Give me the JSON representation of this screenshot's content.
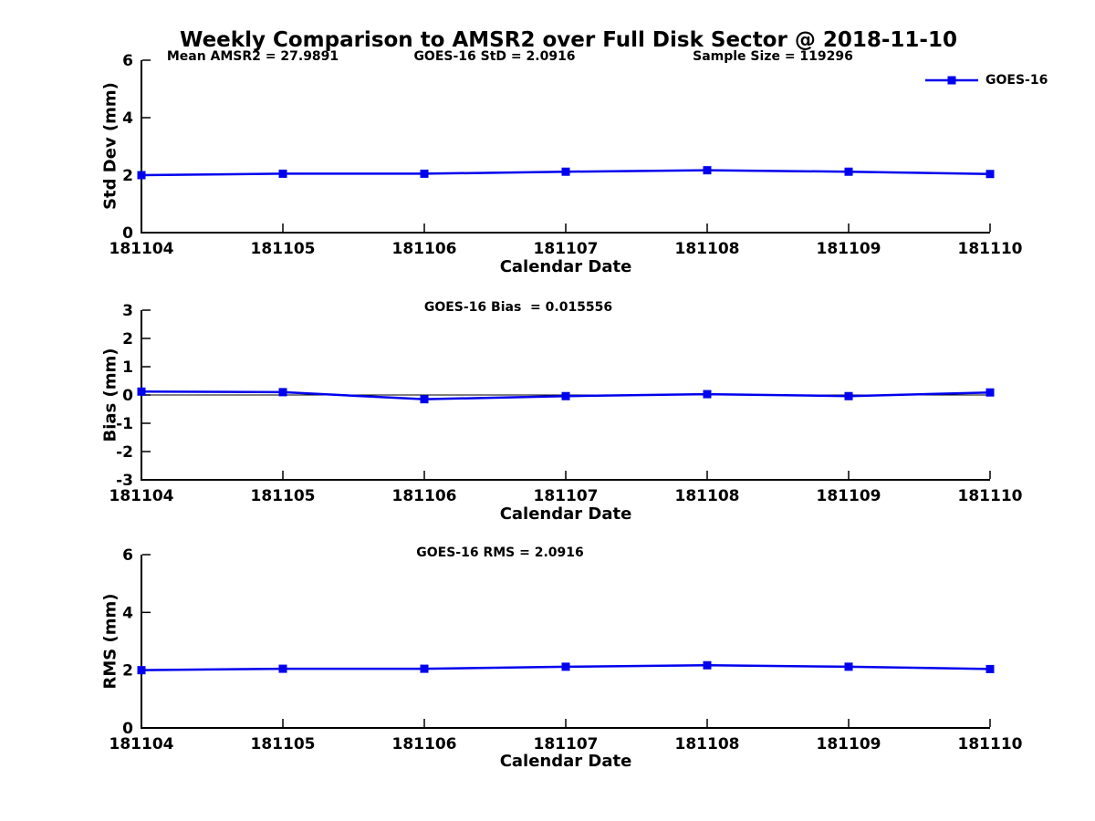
{
  "title": "Weekly Comparison to AMSR2 over Full Disk Sector @ 2018-11-10",
  "legend": {
    "label": "GOES-16",
    "color": "#0000EE",
    "marker": "filled-square",
    "position": "top-right"
  },
  "chart_data": [
    {
      "type": "line",
      "ylabel": "Std Dev (mm)",
      "xlabel": "Calendar Date",
      "ylim": [
        0,
        6
      ],
      "yticks": [
        0,
        2,
        4,
        6
      ],
      "grid": false,
      "x": [
        "181104",
        "181105",
        "181106",
        "181107",
        "181108",
        "181109",
        "181110"
      ],
      "series": [
        {
          "name": "GOES-16",
          "color": "#0000EE",
          "marker": "square",
          "values": [
            2.0,
            2.05,
            2.05,
            2.12,
            2.17,
            2.12,
            2.04
          ]
        }
      ],
      "annotations": [
        {
          "text": "Mean AMSR2 = 27.9891"
        },
        {
          "text": "GOES-16 StD = 2.0916"
        },
        {
          "text": "Sample Size = 119296"
        }
      ]
    },
    {
      "type": "line",
      "ylabel": "Bias (mm)",
      "xlabel": "Calendar Date",
      "ylim": [
        -3,
        3
      ],
      "yticks": [
        -3,
        -2,
        -1,
        0,
        1,
        2,
        3
      ],
      "zero_line": true,
      "grid": false,
      "x": [
        "181104",
        "181105",
        "181106",
        "181107",
        "181108",
        "181109",
        "181110"
      ],
      "series": [
        {
          "name": "GOES-16",
          "color": "#0000EE",
          "marker": "square",
          "values": [
            0.12,
            0.1,
            -0.15,
            -0.04,
            0.03,
            -0.04,
            0.09
          ]
        }
      ],
      "annotations": [
        {
          "text": "GOES-16 Bias  = 0.015556"
        }
      ]
    },
    {
      "type": "line",
      "ylabel": "RMS (mm)",
      "xlabel": "Calendar Date",
      "ylim": [
        0,
        6
      ],
      "yticks": [
        0,
        2,
        4,
        6
      ],
      "grid": false,
      "x": [
        "181104",
        "181105",
        "181106",
        "181107",
        "181108",
        "181109",
        "181110"
      ],
      "series": [
        {
          "name": "GOES-16",
          "color": "#0000EE",
          "marker": "square",
          "values": [
            2.0,
            2.05,
            2.05,
            2.12,
            2.17,
            2.12,
            2.04
          ]
        }
      ],
      "annotations": [
        {
          "text": "GOES-16 RMS = 2.0916"
        }
      ]
    }
  ]
}
